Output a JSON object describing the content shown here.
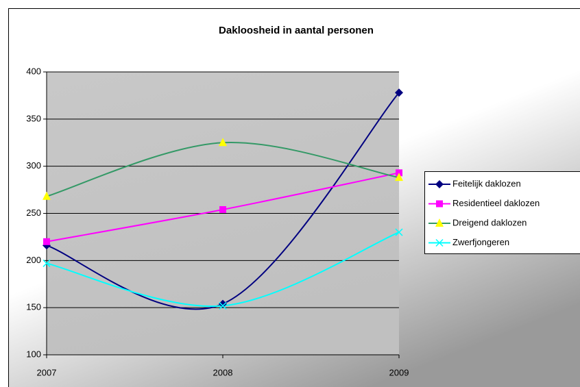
{
  "chart_data": {
    "type": "line",
    "title": "Dakloosheid in aantal personen",
    "categories": [
      "2007",
      "2008",
      "2009"
    ],
    "series": [
      {
        "name": "Feitelijk daklozen",
        "color": "#000080",
        "marker": "diamond",
        "marker_color": "#000080",
        "values": [
          216,
          154,
          378
        ]
      },
      {
        "name": "Residentieel daklozen",
        "color": "#ff00ff",
        "marker": "square",
        "marker_color": "#ff00ff",
        "values": [
          220,
          254,
          293
        ]
      },
      {
        "name": "Dreigend daklozen",
        "color": "#339966",
        "marker": "triangle",
        "marker_color": "#ffff00",
        "values": [
          268,
          325,
          288
        ]
      },
      {
        "name": "Zwerfjongeren",
        "color": "#00ffff",
        "marker": "x",
        "marker_color": "#00ffff",
        "values": [
          197,
          152,
          230
        ]
      }
    ],
    "smooth": true,
    "ylim": [
      100,
      400
    ],
    "yticks": [
      100,
      150,
      200,
      250,
      300,
      350,
      400
    ],
    "grid": true,
    "legend": "right"
  }
}
